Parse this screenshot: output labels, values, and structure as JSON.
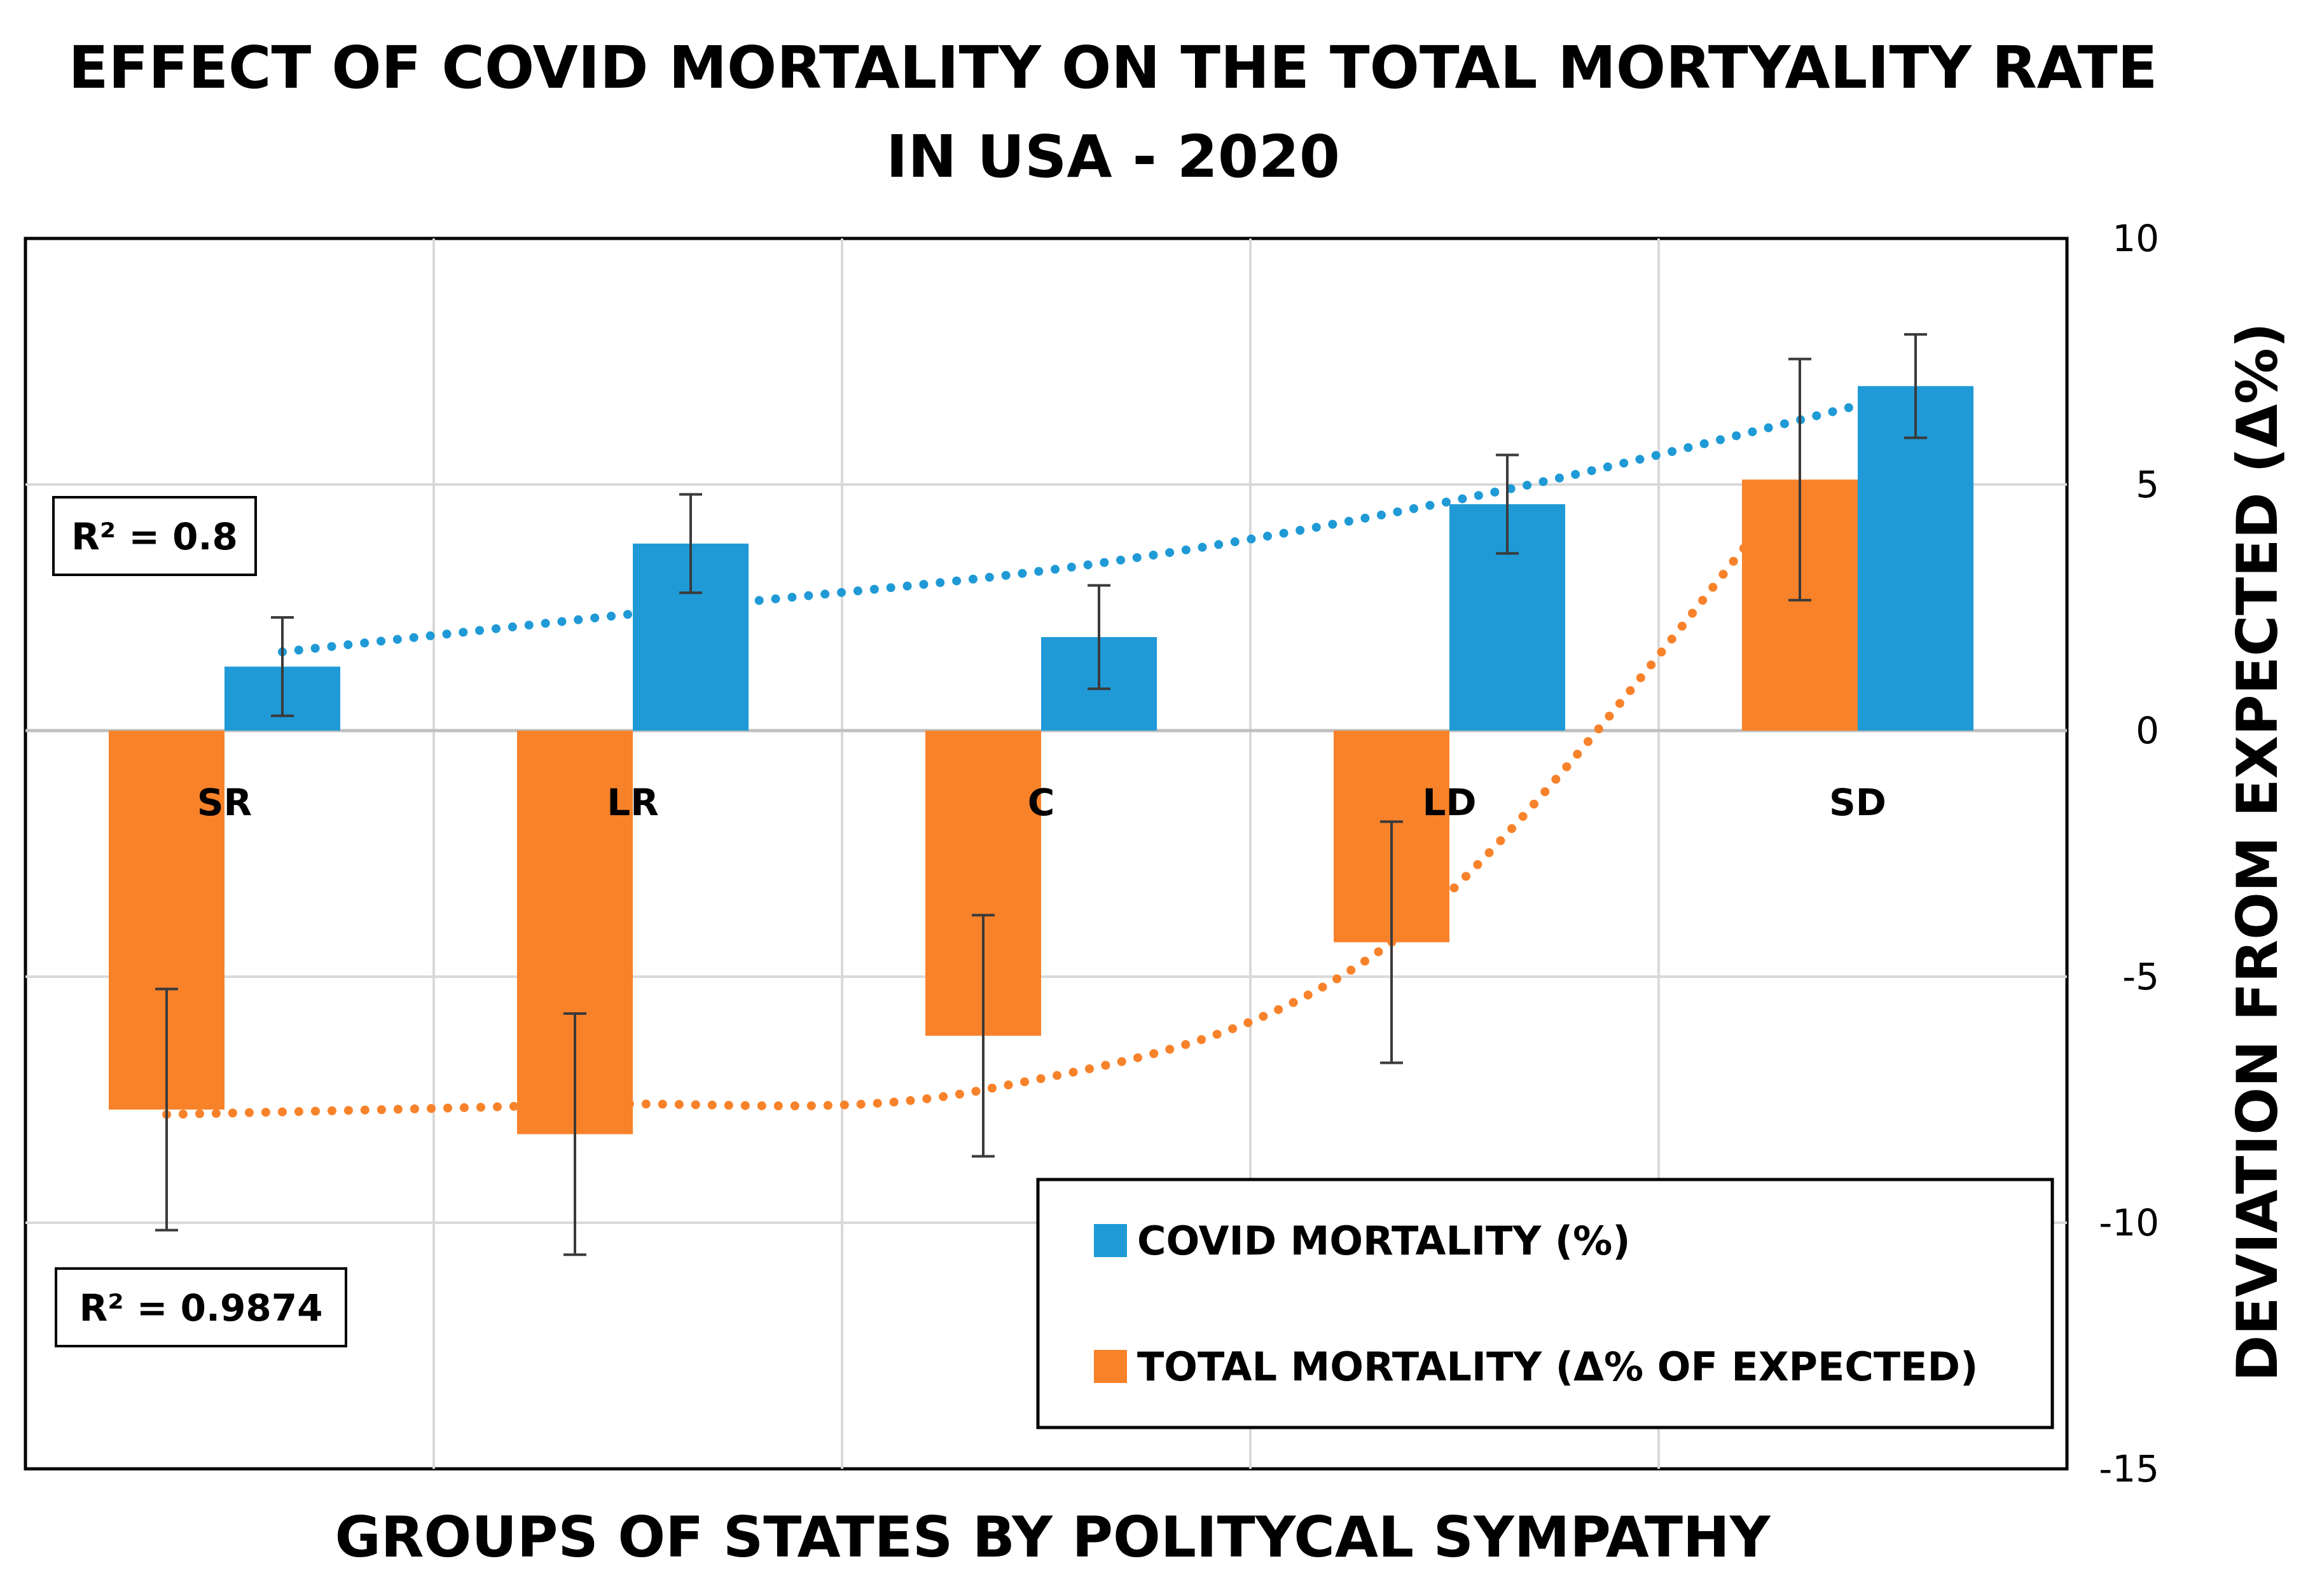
{
  "chart_data": {
    "type": "bar",
    "title": [
      "EFFECT OF COVID MORTALITY ON THE TOTAL MORTYALITY RATE",
      "IN USA - 2020"
    ],
    "xlabel": "GROUPS OF STATES BY POLITYCAL SYMPATHY",
    "ylabel": "DEVIATION FROM EXPECTED (Δ%)",
    "categories": [
      "SR",
      "LR",
      "C",
      "LD",
      "SD"
    ],
    "ylim": [
      -15,
      10
    ],
    "yticks": [
      "10",
      "5",
      "0",
      "-5",
      "-10",
      "-15"
    ],
    "grid": true,
    "legend_position": "bottom-right",
    "series": [
      {
        "name": "TOTAL MORTALITY (Δ% OF EXPECTED)",
        "color": "#F8822A",
        "values": [
          -7.7,
          -8.2,
          -6.2,
          -4.3,
          5.1
        ],
        "error": [
          2.45,
          2.45,
          2.45,
          2.45,
          2.45
        ],
        "trend": [
          -7.8,
          -7.6,
          -7.3,
          -4.3,
          5.1
        ]
      },
      {
        "name": "COVID MORTALITY (%)",
        "color": "#1F9AD6",
        "values": [
          1.3,
          3.8,
          1.9,
          4.6,
          7.0
        ],
        "error": [
          1.0,
          1.0,
          1.05,
          1.0,
          1.05
        ],
        "trend": [
          1.6,
          2.5,
          3.4,
          4.9,
          6.9
        ]
      }
    ],
    "annotations": [
      {
        "label": "R² = 0.8",
        "series": "COVID MORTALITY (%)"
      },
      {
        "label": "R² = 0.9874",
        "series": "TOTAL MORTALITY (Δ% OF EXPECTED)"
      }
    ]
  }
}
